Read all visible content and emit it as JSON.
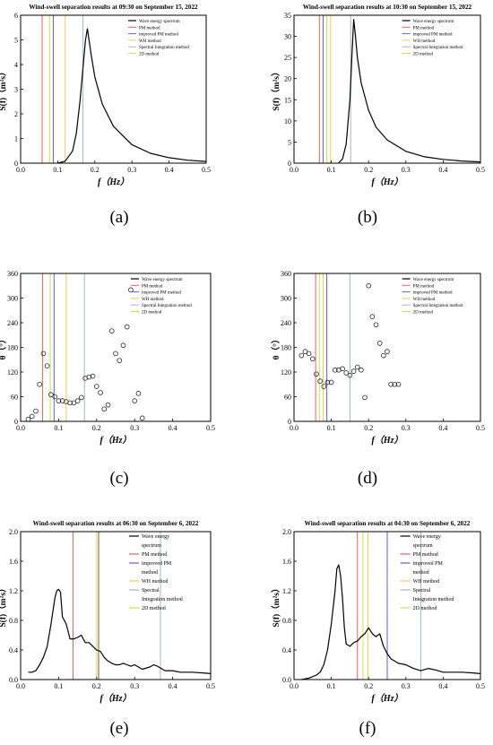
{
  "legend": [
    "Wave energy spectrum",
    "PM method",
    "improved PM method",
    "WH method",
    "Spectral Integration method",
    "2D method"
  ],
  "legend_wrapped": [
    "Wave energy",
    "spectrum",
    "PM method",
    "improved PM",
    "method",
    "WH method",
    "Spectral",
    "Integration method",
    "2D method"
  ],
  "method_colors": {
    "PM method": "#e86060",
    "improved PM method": "#5a62e0",
    "WH method": "#f2cb52",
    "Spectral Integration method": "#9fb8cc",
    "2D method": "#c6e640"
  },
  "spectrum_color": "#000000",
  "chart_data": [
    {
      "type": "line",
      "panel": "(a)",
      "title": "Wind-swell separation results at 09:30 on September 15, 2022",
      "xlabel": "f（Hz）",
      "ylabel": "S(f)（m²s）",
      "xlim": [
        0,
        0.5
      ],
      "ylim": [
        0,
        6
      ],
      "xticks": [
        "0.0",
        "0.1",
        "0.2",
        "0.3",
        "0.4",
        "0.5"
      ],
      "yticks": [
        "0",
        "1",
        "2",
        "3",
        "4",
        "5",
        "6"
      ],
      "series": [
        {
          "name": "Wave energy spectrum",
          "x": [
            0.1,
            0.12,
            0.14,
            0.15,
            0.16,
            0.17,
            0.175,
            0.18,
            0.19,
            0.2,
            0.22,
            0.25,
            0.3,
            0.35,
            0.4,
            0.45,
            0.5
          ],
          "y": [
            0.0,
            0.08,
            0.5,
            1.2,
            2.5,
            4.2,
            5.0,
            5.45,
            4.4,
            3.5,
            2.4,
            1.5,
            0.75,
            0.4,
            0.22,
            0.12,
            0.07
          ]
        }
      ],
      "method_lines": {
        "PM method": 0.058,
        "improved PM method": 0.088,
        "WH method": 0.12,
        "Spectral Integration method": 0.168,
        "2D method": 0.078
      },
      "legend_position": "top-right"
    },
    {
      "type": "line",
      "panel": "(b)",
      "title": "Wind-swell separation results at 10:30 on September 15, 2022",
      "xlabel": "f（Hz）",
      "ylabel": "S(f)（m²s）",
      "xlim": [
        0,
        0.5
      ],
      "ylim": [
        0,
        35
      ],
      "xticks": [
        "0.0",
        "0.1",
        "0.2",
        "0.3",
        "0.4",
        "0.5"
      ],
      "yticks": [
        "0",
        "5",
        "10",
        "15",
        "20",
        "25",
        "30",
        "35"
      ],
      "series": [
        {
          "name": "Wave energy spectrum",
          "x": [
            0.12,
            0.13,
            0.14,
            0.15,
            0.155,
            0.16,
            0.165,
            0.17,
            0.18,
            0.2,
            0.22,
            0.25,
            0.3,
            0.35,
            0.4,
            0.45,
            0.5
          ],
          "y": [
            0.1,
            1.0,
            4.5,
            15.0,
            25.0,
            34.0,
            30.0,
            25.0,
            19.0,
            12.5,
            8.5,
            5.5,
            2.8,
            1.5,
            0.9,
            0.5,
            0.3
          ]
        }
      ],
      "method_lines": {
        "PM method": 0.068,
        "improved PM method": 0.078,
        "WH method": 0.098,
        "Spectral Integration method": 0.152,
        "2D method": 0.088
      },
      "legend_position": "top-right"
    },
    {
      "type": "scatter",
      "panel": "(c)",
      "title": "",
      "xlabel": "f（Hz）",
      "ylabel": "θ（°）",
      "xlim": [
        0,
        0.5
      ],
      "ylim": [
        0,
        360
      ],
      "xticks": [
        "0.0",
        "0.1",
        "0.2",
        "0.3",
        "0.4",
        "0.5"
      ],
      "yticks": [
        "0",
        "60",
        "120",
        "180",
        "240",
        "300",
        "360"
      ],
      "points": [
        [
          0.02,
          5
        ],
        [
          0.03,
          12
        ],
        [
          0.04,
          25
        ],
        [
          0.05,
          90
        ],
        [
          0.06,
          165
        ],
        [
          0.07,
          135
        ],
        [
          0.08,
          65
        ],
        [
          0.09,
          60
        ],
        [
          0.1,
          50
        ],
        [
          0.11,
          50
        ],
        [
          0.12,
          48
        ],
        [
          0.13,
          45
        ],
        [
          0.14,
          45
        ],
        [
          0.15,
          50
        ],
        [
          0.16,
          58
        ],
        [
          0.17,
          105
        ],
        [
          0.18,
          108
        ],
        [
          0.19,
          110
        ],
        [
          0.2,
          85
        ],
        [
          0.21,
          70
        ],
        [
          0.22,
          30
        ],
        [
          0.23,
          40
        ],
        [
          0.24,
          220
        ],
        [
          0.25,
          165
        ],
        [
          0.26,
          148
        ],
        [
          0.27,
          185
        ],
        [
          0.28,
          230
        ],
        [
          0.29,
          320
        ],
        [
          0.3,
          50
        ],
        [
          0.31,
          68
        ],
        [
          0.32,
          8
        ]
      ],
      "method_lines": {
        "PM method": 0.058,
        "improved PM method": 0.088,
        "WH method": 0.12,
        "Spectral Integration method": 0.168,
        "2D method": 0.078
      },
      "legend_position": "top-right"
    },
    {
      "type": "scatter",
      "panel": "(d)",
      "title": "",
      "xlabel": "f（Hz）",
      "ylabel": "θ（°）",
      "xlim": [
        0,
        0.5
      ],
      "ylim": [
        0,
        360
      ],
      "xticks": [
        "0.0",
        "0.1",
        "0.2",
        "0.3",
        "0.4",
        "0.5"
      ],
      "yticks": [
        "0",
        "60",
        "120",
        "180",
        "240",
        "300",
        "360"
      ],
      "points": [
        [
          0.02,
          160
        ],
        [
          0.03,
          170
        ],
        [
          0.04,
          165
        ],
        [
          0.05,
          152
        ],
        [
          0.06,
          115
        ],
        [
          0.07,
          98
        ],
        [
          0.08,
          85
        ],
        [
          0.09,
          95
        ],
        [
          0.1,
          95
        ],
        [
          0.11,
          125
        ],
        [
          0.12,
          125
        ],
        [
          0.13,
          128
        ],
        [
          0.14,
          118
        ],
        [
          0.15,
          112
        ],
        [
          0.16,
          122
        ],
        [
          0.17,
          132
        ],
        [
          0.18,
          125
        ],
        [
          0.19,
          58
        ],
        [
          0.2,
          330
        ],
        [
          0.21,
          255
        ],
        [
          0.22,
          235
        ],
        [
          0.23,
          190
        ],
        [
          0.24,
          160
        ],
        [
          0.25,
          170
        ],
        [
          0.26,
          90
        ],
        [
          0.27,
          90
        ],
        [
          0.28,
          90
        ]
      ],
      "method_lines": {
        "PM method": 0.058,
        "improved PM method": 0.088,
        "WH method": 0.078,
        "Spectral Integration method": 0.15,
        "2D method": 0.068
      },
      "legend_position": "top-right"
    },
    {
      "type": "line",
      "panel": "(e)",
      "title": "Wind-swell separation results at 06:30 on September 6, 2022",
      "xlabel": "f（Hz）",
      "ylabel": "S(f)（m²s）",
      "xlim": [
        0,
        0.5
      ],
      "ylim": [
        0,
        2.0
      ],
      "xticks": [
        "0.0",
        "0.1",
        "0.2",
        "0.3",
        "0.4",
        "0.5"
      ],
      "yticks": [
        "0.0",
        "0.4",
        "0.8",
        "1.2",
        "1.6",
        "2.0"
      ],
      "series": [
        {
          "name": "Wave energy spectrum",
          "x": [
            0.02,
            0.03,
            0.04,
            0.05,
            0.06,
            0.07,
            0.08,
            0.09,
            0.095,
            0.1,
            0.105,
            0.11,
            0.12,
            0.13,
            0.14,
            0.15,
            0.16,
            0.17,
            0.18,
            0.19,
            0.2,
            0.21,
            0.22,
            0.23,
            0.24,
            0.25,
            0.26,
            0.27,
            0.28,
            0.29,
            0.3,
            0.32,
            0.34,
            0.35,
            0.36,
            0.38,
            0.4,
            0.42,
            0.45,
            0.48,
            0.5
          ],
          "y": [
            0.1,
            0.1,
            0.12,
            0.2,
            0.3,
            0.45,
            0.75,
            1.1,
            1.2,
            1.22,
            1.18,
            0.85,
            0.75,
            0.55,
            0.55,
            0.57,
            0.6,
            0.5,
            0.5,
            0.45,
            0.4,
            0.38,
            0.3,
            0.25,
            0.22,
            0.2,
            0.2,
            0.22,
            0.2,
            0.18,
            0.2,
            0.14,
            0.17,
            0.2,
            0.18,
            0.12,
            0.12,
            0.1,
            0.1,
            0.09,
            0.08
          ]
        }
      ],
      "method_lines": {
        "PM method": 0.138,
        "improved PM method": 0.205,
        "WH method": 0.207,
        "Spectral Integration method": 0.368,
        "2D method": 0.2
      },
      "legend_position": "top-right"
    },
    {
      "type": "line",
      "panel": "(f)",
      "title": "Wind-swell separation results at 04:30 on September 6, 2022",
      "xlabel": "f（Hz）",
      "ylabel": "S(f)（m²s）",
      "xlim": [
        0,
        0.5
      ],
      "ylim": [
        0,
        2.0
      ],
      "xticks": [
        "0.0",
        "0.1",
        "0.2",
        "0.3",
        "0.4",
        "0.5"
      ],
      "yticks": [
        "0.0",
        "0.4",
        "0.8",
        "1.2",
        "1.6",
        "2.0"
      ],
      "series": [
        {
          "name": "Wave energy spectrum",
          "x": [
            0.02,
            0.04,
            0.06,
            0.07,
            0.08,
            0.09,
            0.1,
            0.11,
            0.115,
            0.12,
            0.125,
            0.13,
            0.135,
            0.14,
            0.15,
            0.16,
            0.17,
            0.18,
            0.19,
            0.2,
            0.21,
            0.22,
            0.23,
            0.24,
            0.25,
            0.26,
            0.28,
            0.3,
            0.32,
            0.34,
            0.36,
            0.38,
            0.4,
            0.42,
            0.45,
            0.48,
            0.5
          ],
          "y": [
            0.0,
            0.02,
            0.06,
            0.1,
            0.2,
            0.4,
            0.75,
            1.2,
            1.5,
            1.55,
            1.4,
            1.1,
            0.7,
            0.48,
            0.45,
            0.5,
            0.52,
            0.58,
            0.62,
            0.7,
            0.62,
            0.58,
            0.62,
            0.45,
            0.35,
            0.28,
            0.22,
            0.2,
            0.15,
            0.12,
            0.15,
            0.13,
            0.1,
            0.1,
            0.1,
            0.09,
            0.08
          ]
        }
      ],
      "method_lines": {
        "PM method": 0.17,
        "improved PM method": 0.25,
        "WH method": 0.198,
        "Spectral Integration method": 0.34,
        "2D method": 0.185
      },
      "legend_position": "top-right"
    }
  ]
}
